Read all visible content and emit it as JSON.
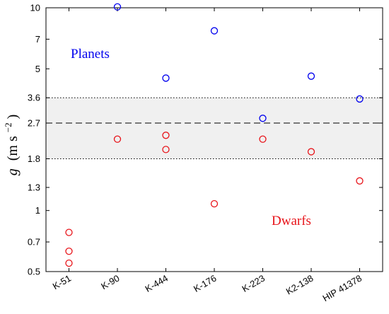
{
  "chart_data": {
    "type": "scatter",
    "y_scale": "log",
    "ylim": [
      0.5,
      10
    ],
    "yticks": [
      0.5,
      0.7,
      1,
      1.3,
      1.8,
      2.7,
      3.6,
      5,
      7,
      10
    ],
    "ytick_labels": [
      "0.5",
      "0.7",
      "1",
      "1.3",
      "1.8",
      "2.7",
      "3.6",
      "5",
      "7",
      "10"
    ],
    "categories": [
      "K-51",
      "K-90",
      "K-444",
      "K-176",
      "K-223",
      "K2-138",
      "HIP 41378"
    ],
    "ylabel_symbol": "g",
    "ylabel_units": "(m s",
    "ylabel_exp": "−2",
    "ylabel_close": ")",
    "band": {
      "low": 1.8,
      "high": 3.6,
      "mid": 2.7,
      "color": "#f0f0f0"
    },
    "series": [
      {
        "name": "Planets",
        "color": "#0000ee",
        "points": [
          {
            "x": "K-90",
            "y": 10.1
          },
          {
            "x": "K-444",
            "y": 4.5
          },
          {
            "x": "K-176",
            "y": 7.7
          },
          {
            "x": "K-223",
            "y": 2.85
          },
          {
            "x": "K2-138",
            "y": 4.6
          },
          {
            "x": "HIP 41378",
            "y": 3.55
          }
        ]
      },
      {
        "name": "Dwarfs",
        "color": "#e8141a",
        "points": [
          {
            "x": "K-51",
            "y": 0.78
          },
          {
            "x": "K-51",
            "y": 0.63
          },
          {
            "x": "K-51",
            "y": 0.55
          },
          {
            "x": "K-90",
            "y": 2.25
          },
          {
            "x": "K-444",
            "y": 2.35
          },
          {
            "x": "K-444",
            "y": 2.0
          },
          {
            "x": "K-176",
            "y": 1.08
          },
          {
            "x": "K-223",
            "y": 2.25
          },
          {
            "x": "K2-138",
            "y": 1.95
          },
          {
            "x": "HIP 41378",
            "y": 1.4
          }
        ]
      }
    ],
    "annotations": [
      {
        "text": "Planets",
        "color": "#0000ee"
      },
      {
        "text": "Dwarfs",
        "color": "#e8141a"
      }
    ]
  }
}
